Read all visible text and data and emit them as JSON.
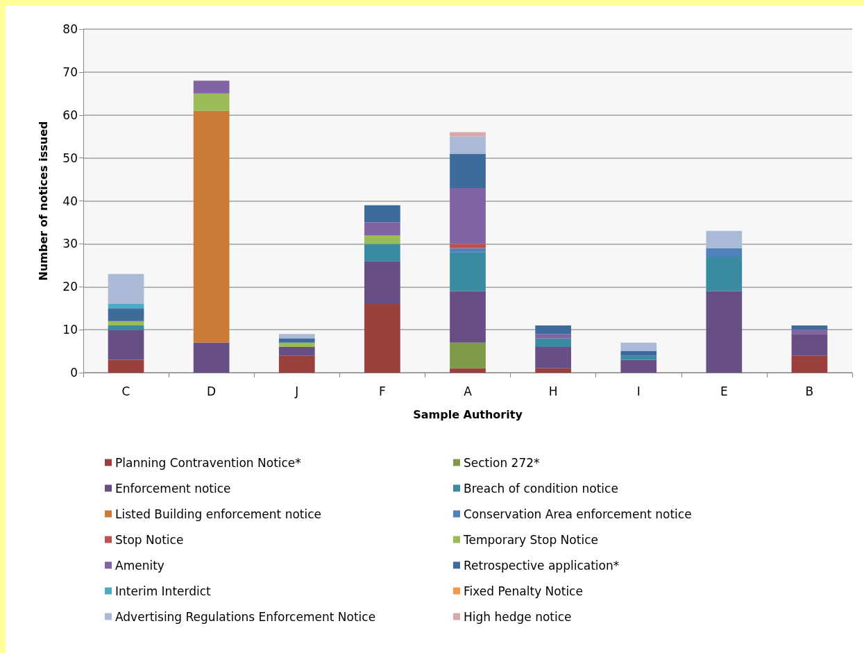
{
  "chart_data": {
    "type": "bar",
    "stacked": true,
    "xlabel": "Sample Authority",
    "ylabel": "Number of notices issued",
    "categories": [
      "C",
      "D",
      "J",
      "F",
      "A",
      "H",
      "I",
      "E",
      "B"
    ],
    "ylim": [
      0,
      80
    ],
    "yticks": [
      0,
      10,
      20,
      30,
      40,
      50,
      60,
      70,
      80
    ],
    "grid": "y",
    "legend": "bottom",
    "series": [
      {
        "name": "Planning Contravention Notice*",
        "color": "#9b3f3d",
        "values": [
          3,
          0,
          4,
          16,
          1,
          1,
          0,
          0,
          4
        ]
      },
      {
        "name": "Section 272*",
        "color": "#7f9a48",
        "values": [
          0,
          0,
          0,
          0,
          6,
          0,
          0,
          0,
          0
        ]
      },
      {
        "name": "Enforcement notice",
        "color": "#674f86",
        "values": [
          7,
          7,
          2,
          10,
          12,
          5,
          3,
          19,
          5
        ]
      },
      {
        "name": "Breach of condition notice",
        "color": "#3a8ba2",
        "values": [
          1,
          0,
          0,
          4,
          9,
          2,
          1,
          8,
          0
        ]
      },
      {
        "name": "Listed Building enforcement notice",
        "color": "#cc7a37",
        "values": [
          0,
          54,
          0,
          0,
          0,
          0,
          0,
          0,
          0
        ]
      },
      {
        "name": "Conservation Area enforcement notice",
        "color": "#4f81bd",
        "values": [
          0,
          0,
          0,
          0,
          1,
          0,
          0,
          2,
          0
        ]
      },
      {
        "name": "Stop Notice",
        "color": "#c0504d",
        "values": [
          0,
          0,
          0,
          0,
          1,
          0,
          0,
          0,
          0
        ]
      },
      {
        "name": "Temporary Stop Notice",
        "color": "#9bbb59",
        "values": [
          1,
          4,
          1,
          2,
          0,
          0,
          0,
          0,
          0
        ]
      },
      {
        "name": "Amenity",
        "color": "#8064a2",
        "values": [
          0,
          3,
          0,
          3,
          13,
          1,
          0,
          0,
          1
        ]
      },
      {
        "name": "Retrospective application*",
        "color": "#3f6a9c",
        "values": [
          3,
          0,
          1,
          4,
          8,
          2,
          1,
          0,
          1
        ]
      },
      {
        "name": "Interim Interdict",
        "color": "#4bacc6",
        "values": [
          1,
          0,
          0,
          0,
          0,
          0,
          0,
          0,
          0
        ]
      },
      {
        "name": "Fixed Penalty Notice",
        "color": "#f79646",
        "values": [
          0,
          0,
          0,
          0,
          0,
          0,
          0,
          0,
          0
        ]
      },
      {
        "name": "Advertising Regulations Enforcement Notice",
        "color": "#aabad7",
        "values": [
          7,
          0,
          1,
          0,
          4,
          0,
          2,
          4,
          0
        ]
      },
      {
        "name": "High hedge notice",
        "color": "#d9a8a8",
        "values": [
          0,
          0,
          0,
          0,
          1,
          0,
          0,
          0,
          0
        ]
      }
    ]
  }
}
